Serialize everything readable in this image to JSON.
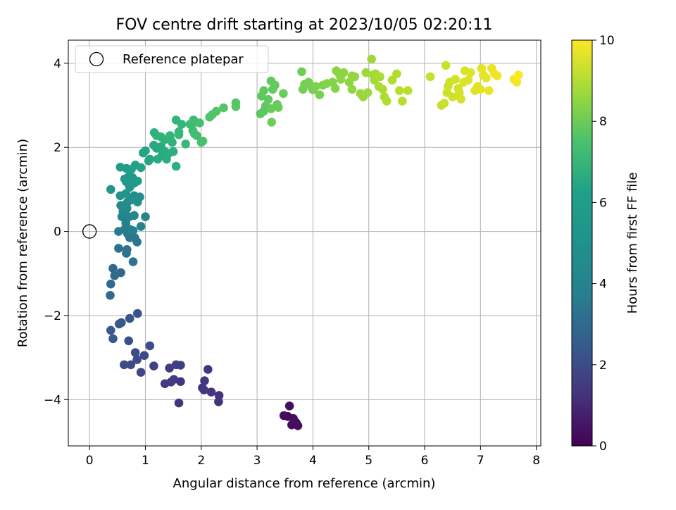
{
  "chart_data": {
    "type": "scatter",
    "title": "FOV centre drift starting at 2023/10/05 02:20:11",
    "xlabel": "Angular distance from reference (arcmin)",
    "ylabel": "Rotation from reference (arcmin)",
    "xlim": [
      -0.38,
      8.08
    ],
    "ylim": [
      -5.1,
      4.55
    ],
    "xticks": [
      0,
      1,
      2,
      3,
      4,
      5,
      6,
      7,
      8
    ],
    "yticks": [
      -4,
      -2,
      0,
      2,
      4
    ],
    "grid": true,
    "legend": {
      "placement": "top-left",
      "entries": [
        "Reference platepar"
      ]
    },
    "reference_point": {
      "x": 0,
      "y": 0
    },
    "colorbar": {
      "label": "Hours from first FF file",
      "range": [
        0,
        10
      ],
      "ticks": [
        0,
        2,
        4,
        6,
        8,
        10
      ],
      "colormap": "viridis"
    },
    "points": [
      [
        3.55,
        -4.4,
        0.3
      ],
      [
        3.62,
        -4.6,
        0.3
      ],
      [
        3.7,
        -4.55,
        0.35
      ],
      [
        3.58,
        -4.15,
        0.4
      ],
      [
        3.65,
        -4.45,
        0.35
      ],
      [
        3.48,
        -4.38,
        0.3
      ],
      [
        3.73,
        -4.62,
        0.4
      ],
      [
        2.32,
        -3.9,
        1.4
      ],
      [
        2.31,
        -4.05,
        1.45
      ],
      [
        2.18,
        -3.82,
        1.5
      ],
      [
        2.02,
        -3.72,
        1.55
      ],
      [
        2.06,
        -3.55,
        1.6
      ],
      [
        2.12,
        -3.28,
        1.55
      ],
      [
        2.05,
        -3.77,
        1.5
      ],
      [
        1.6,
        -4.08,
        1.5
      ],
      [
        1.63,
        -3.57,
        1.65
      ],
      [
        1.51,
        -3.52,
        1.7
      ],
      [
        1.46,
        -3.58,
        1.75
      ],
      [
        1.35,
        -3.62,
        1.8
      ],
      [
        1.43,
        -3.25,
        1.8
      ],
      [
        1.55,
        -3.17,
        1.85
      ],
      [
        1.63,
        -3.18,
        1.9
      ],
      [
        1.15,
        -3.2,
        2.0
      ],
      [
        0.92,
        -3.35,
        2.1
      ],
      [
        0.98,
        -2.95,
        2.2
      ],
      [
        1.08,
        -2.72,
        2.25
      ],
      [
        0.85,
        -3.05,
        2.3
      ],
      [
        0.82,
        -2.88,
        2.35
      ],
      [
        0.74,
        -3.17,
        2.3
      ],
      [
        0.62,
        -3.17,
        2.3
      ],
      [
        0.7,
        -2.6,
        2.45
      ],
      [
        0.86,
        -1.95,
        2.6
      ],
      [
        0.72,
        -2.07,
        2.65
      ],
      [
        0.57,
        -2.17,
        2.7
      ],
      [
        0.53,
        -2.2,
        2.75
      ],
      [
        0.38,
        -2.35,
        2.8
      ],
      [
        0.42,
        -2.55,
        2.85
      ],
      [
        0.56,
        -0.98,
        3.3
      ],
      [
        0.42,
        -0.88,
        3.35
      ],
      [
        0.38,
        -1.25,
        3.4
      ],
      [
        0.37,
        -1.52,
        3.45
      ],
      [
        0.45,
        -1.05,
        3.45
      ],
      [
        0.52,
        -0.4,
        3.7
      ],
      [
        0.67,
        -0.43,
        3.75
      ],
      [
        0.66,
        -0.52,
        3.8
      ],
      [
        0.78,
        -0.72,
        3.85
      ],
      [
        0.85,
        -0.25,
        3.9
      ],
      [
        0.81,
        -0.15,
        3.95
      ],
      [
        0.72,
        -0.15,
        4.0
      ],
      [
        0.68,
        -0.05,
        4.05
      ],
      [
        0.52,
        0.0,
        4.2
      ],
      [
        0.63,
        0.05,
        4.25
      ],
      [
        0.72,
        0.05,
        4.3
      ],
      [
        0.78,
        0.02,
        4.35
      ],
      [
        0.65,
        0.2,
        4.4
      ],
      [
        0.92,
        0.12,
        4.45
      ],
      [
        0.58,
        0.35,
        4.5
      ],
      [
        0.71,
        0.35,
        4.55
      ],
      [
        0.8,
        0.38,
        4.6
      ],
      [
        1.0,
        0.35,
        4.65
      ],
      [
        0.6,
        0.48,
        4.7
      ],
      [
        0.67,
        0.55,
        4.75
      ],
      [
        0.56,
        0.62,
        4.8
      ],
      [
        0.68,
        0.7,
        4.85
      ],
      [
        0.8,
        0.85,
        4.9
      ],
      [
        0.9,
        0.82,
        4.95
      ],
      [
        0.75,
        0.75,
        5.0
      ],
      [
        0.86,
        0.7,
        5.05
      ],
      [
        0.55,
        0.85,
        5.1
      ],
      [
        0.65,
        0.9,
        5.15
      ],
      [
        0.38,
        1.0,
        5.2
      ],
      [
        0.72,
        1.05,
        5.25
      ],
      [
        0.66,
        1.18,
        5.3
      ],
      [
        0.8,
        1.15,
        5.35
      ],
      [
        0.7,
        1.3,
        5.4
      ],
      [
        0.77,
        1.28,
        5.45
      ],
      [
        0.63,
        1.25,
        5.45
      ],
      [
        0.86,
        1.2,
        5.5
      ],
      [
        0.55,
        1.53,
        5.55
      ],
      [
        0.66,
        1.5,
        5.6
      ],
      [
        0.75,
        1.48,
        5.65
      ],
      [
        0.82,
        1.58,
        5.7
      ],
      [
        0.92,
        1.52,
        5.75
      ],
      [
        0.96,
        1.87,
        5.8
      ],
      [
        1.0,
        1.92,
        5.85
      ],
      [
        1.06,
        1.68,
        5.9
      ],
      [
        1.08,
        1.72,
        5.9
      ],
      [
        1.2,
        1.98,
        5.95
      ],
      [
        1.15,
        2.05,
        6.0
      ],
      [
        1.28,
        2.02,
        6.05
      ],
      [
        1.22,
        1.72,
        6.1
      ],
      [
        1.3,
        1.82,
        6.1
      ],
      [
        1.35,
        1.9,
        6.15
      ],
      [
        1.38,
        1.72,
        6.2
      ],
      [
        1.42,
        1.86,
        6.2
      ],
      [
        1.5,
        1.9,
        6.25
      ],
      [
        1.48,
        2.12,
        6.3
      ],
      [
        1.55,
        1.55,
        6.3
      ],
      [
        1.16,
        2.35,
        6.35
      ],
      [
        1.2,
        2.28,
        6.4
      ],
      [
        1.28,
        2.25,
        6.45
      ],
      [
        1.34,
        2.18,
        6.45
      ],
      [
        1.45,
        2.18,
        6.5
      ],
      [
        1.44,
        2.28,
        6.55
      ],
      [
        1.55,
        2.65,
        6.6
      ],
      [
        1.6,
        2.37,
        6.6
      ],
      [
        1.65,
        2.55,
        6.65
      ],
      [
        1.6,
        2.3,
        6.7
      ],
      [
        1.72,
        2.08,
        6.75
      ],
      [
        1.8,
        2.55,
        6.8
      ],
      [
        1.86,
        2.65,
        6.85
      ],
      [
        1.85,
        2.4,
        6.85
      ],
      [
        1.9,
        2.6,
        6.9
      ],
      [
        1.88,
        2.32,
        6.95
      ],
      [
        1.92,
        2.28,
        6.95
      ],
      [
        1.97,
        2.58,
        7.0
      ],
      [
        2.0,
        2.12,
        7.05
      ],
      [
        2.03,
        2.15,
        7.1
      ],
      [
        2.15,
        2.72,
        7.15
      ],
      [
        2.2,
        2.78,
        7.2
      ],
      [
        2.27,
        2.86,
        7.25
      ],
      [
        2.4,
        2.94,
        7.3
      ],
      [
        2.62,
        3.06,
        7.35
      ],
      [
        2.62,
        2.97,
        7.35
      ],
      [
        3.06,
        2.8,
        7.4
      ],
      [
        3.12,
        2.86,
        7.45
      ],
      [
        3.15,
        2.98,
        7.45
      ],
      [
        3.08,
        3.22,
        7.5
      ],
      [
        3.12,
        3.35,
        7.5
      ],
      [
        3.2,
        3.14,
        7.55
      ],
      [
        3.25,
        3.58,
        7.55
      ],
      [
        3.28,
        3.38,
        7.6
      ],
      [
        3.32,
        3.48,
        7.6
      ],
      [
        3.25,
        2.92,
        7.65
      ],
      [
        3.36,
        3.02,
        7.65
      ],
      [
        3.38,
        2.95,
        7.7
      ],
      [
        3.47,
        3.28,
        7.7
      ],
      [
        3.26,
        2.6,
        7.75
      ],
      [
        3.8,
        3.8,
        7.8
      ],
      [
        3.85,
        3.5,
        7.85
      ],
      [
        3.82,
        3.38,
        7.85
      ],
      [
        3.92,
        3.55,
        7.9
      ],
      [
        3.98,
        3.42,
        7.9
      ],
      [
        4.0,
        3.37,
        7.95
      ],
      [
        4.05,
        3.45,
        8.0
      ],
      [
        4.12,
        3.25,
        8.0
      ],
      [
        4.18,
        3.48,
        8.05
      ],
      [
        4.25,
        3.52,
        8.1
      ],
      [
        4.35,
        3.55,
        8.1
      ],
      [
        4.4,
        3.4,
        8.15
      ],
      [
        4.42,
        3.82,
        8.2
      ],
      [
        4.48,
        3.72,
        8.2
      ],
      [
        4.5,
        3.62,
        8.25
      ],
      [
        4.55,
        3.78,
        8.25
      ],
      [
        4.65,
        3.55,
        8.3
      ],
      [
        4.7,
        3.38,
        8.35
      ],
      [
        4.7,
        3.7,
        8.35
      ],
      [
        4.75,
        3.68,
        8.4
      ],
      [
        4.85,
        3.28,
        8.45
      ],
      [
        4.9,
        3.2,
        8.45
      ],
      [
        4.95,
        3.78,
        8.5
      ],
      [
        4.98,
        3.3,
        8.5
      ],
      [
        5.05,
        4.1,
        8.55
      ],
      [
        5.08,
        3.72,
        8.6
      ],
      [
        5.1,
        3.6,
        8.6
      ],
      [
        5.12,
        3.75,
        8.65
      ],
      [
        5.18,
        3.45,
        8.7
      ],
      [
        5.2,
        3.68,
        8.7
      ],
      [
        5.25,
        3.38,
        8.75
      ],
      [
        5.28,
        3.2,
        8.75
      ],
      [
        5.32,
        3.1,
        8.8
      ],
      [
        5.42,
        3.6,
        8.85
      ],
      [
        5.5,
        3.75,
        8.85
      ],
      [
        5.55,
        3.35,
        8.9
      ],
      [
        5.6,
        3.1,
        8.9
      ],
      [
        5.7,
        3.35,
        8.95
      ],
      [
        6.1,
        3.68,
        9.1
      ],
      [
        6.3,
        3.0,
        9.15
      ],
      [
        6.35,
        3.05,
        9.2
      ],
      [
        6.38,
        3.95,
        9.2
      ],
      [
        6.4,
        3.3,
        9.25
      ],
      [
        6.42,
        3.45,
        9.25
      ],
      [
        6.45,
        3.55,
        9.3
      ],
      [
        6.5,
        3.2,
        9.3
      ],
      [
        6.55,
        3.62,
        9.35
      ],
      [
        6.6,
        3.4,
        9.35
      ],
      [
        6.62,
        3.3,
        9.4
      ],
      [
        6.65,
        3.15,
        9.4
      ],
      [
        6.7,
        3.55,
        9.45
      ],
      [
        6.72,
        3.82,
        9.45
      ],
      [
        6.78,
        3.6,
        9.5
      ],
      [
        6.82,
        3.78,
        9.5
      ],
      [
        6.9,
        3.35,
        9.55
      ],
      [
        6.95,
        3.45,
        9.55
      ],
      [
        7.0,
        3.38,
        9.6
      ],
      [
        7.02,
        3.88,
        9.6
      ],
      [
        7.05,
        3.72,
        9.65
      ],
      [
        7.1,
        3.65,
        9.65
      ],
      [
        7.15,
        3.35,
        9.7
      ],
      [
        7.2,
        3.88,
        9.7
      ],
      [
        7.25,
        3.75,
        9.75
      ],
      [
        7.3,
        3.7,
        9.8
      ],
      [
        7.6,
        3.62,
        9.85
      ],
      [
        7.65,
        3.55,
        9.9
      ],
      [
        7.68,
        3.72,
        9.95
      ]
    ]
  }
}
